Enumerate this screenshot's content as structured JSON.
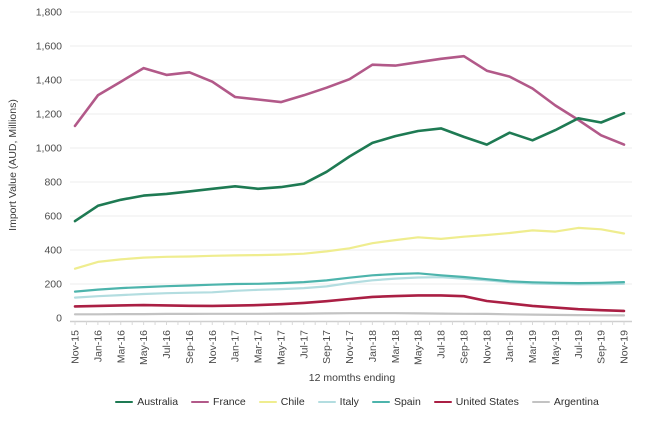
{
  "chart": {
    "y_axis_title": "Import Value (AUD, Millions)",
    "x_axis_title": "12 momths ending"
  },
  "chart_data": {
    "type": "line",
    "title": "",
    "xlabel": "12 momths ending",
    "ylabel": "Import Value (AUD, Millions)",
    "ylim": [
      0,
      1800
    ],
    "y_tick_step": 200,
    "grid": true,
    "legend_position": "bottom",
    "categories": [
      "Nov-15",
      "Jan-16",
      "Mar-16",
      "May-16",
      "Jul-16",
      "Sep-16",
      "Nov-16",
      "Jan-17",
      "Mar-17",
      "May-17",
      "Jul-17",
      "Sep-17",
      "Nov-17",
      "Jan-18",
      "Mar-18",
      "May-18",
      "Jul-18",
      "Sep-18",
      "Nov-18",
      "Jan-19",
      "Mar-19",
      "May-19",
      "Jul-19",
      "Sep-19",
      "Nov-19"
    ],
    "series": [
      {
        "name": "Australia",
        "color": "#1e7a53",
        "values": [
          570,
          660,
          695,
          720,
          730,
          745,
          760,
          775,
          760,
          770,
          790,
          860,
          950,
          1030,
          1070,
          1100,
          1115,
          1065,
          1020,
          1090,
          1045,
          1105,
          1175,
          1150,
          1205
        ]
      },
      {
        "name": "France",
        "color": "#b25989",
        "values": [
          1130,
          1310,
          1390,
          1470,
          1430,
          1445,
          1390,
          1300,
          1285,
          1270,
          1310,
          1355,
          1405,
          1490,
          1485,
          1505,
          1525,
          1540,
          1455,
          1420,
          1350,
          1250,
          1165,
          1075,
          1020
        ]
      },
      {
        "name": "Chile",
        "color": "#efed8f",
        "values": [
          290,
          330,
          345,
          355,
          360,
          362,
          366,
          368,
          370,
          373,
          378,
          392,
          410,
          440,
          458,
          475,
          465,
          478,
          488,
          500,
          515,
          508,
          530,
          522,
          497
        ]
      },
      {
        "name": "Italy",
        "color": "#b3dde0",
        "values": [
          120,
          128,
          135,
          141,
          146,
          149,
          151,
          160,
          166,
          170,
          176,
          186,
          206,
          222,
          232,
          238,
          240,
          232,
          222,
          210,
          203,
          200,
          198,
          199,
          201
        ]
      },
      {
        "name": "Spain",
        "color": "#4db4ac",
        "values": [
          155,
          167,
          176,
          182,
          187,
          191,
          196,
          200,
          201,
          205,
          211,
          221,
          237,
          251,
          259,
          263,
          251,
          241,
          228,
          216,
          210,
          207,
          205,
          207,
          211
        ]
      },
      {
        "name": "United States",
        "color": "#aa1f44",
        "values": [
          68,
          71,
          74,
          76,
          74,
          72,
          71,
          73,
          76,
          81,
          89,
          99,
          112,
          124,
          129,
          133,
          133,
          128,
          100,
          86,
          71,
          61,
          52,
          46,
          42
        ]
      },
      {
        "name": "Argentina",
        "color": "#c3c3c3",
        "values": [
          22,
          22,
          23,
          23,
          24,
          24,
          25,
          25,
          25,
          26,
          26,
          27,
          28,
          28,
          28,
          27,
          26,
          25,
          24,
          22,
          20,
          18,
          17,
          16,
          15
        ]
      }
    ]
  }
}
